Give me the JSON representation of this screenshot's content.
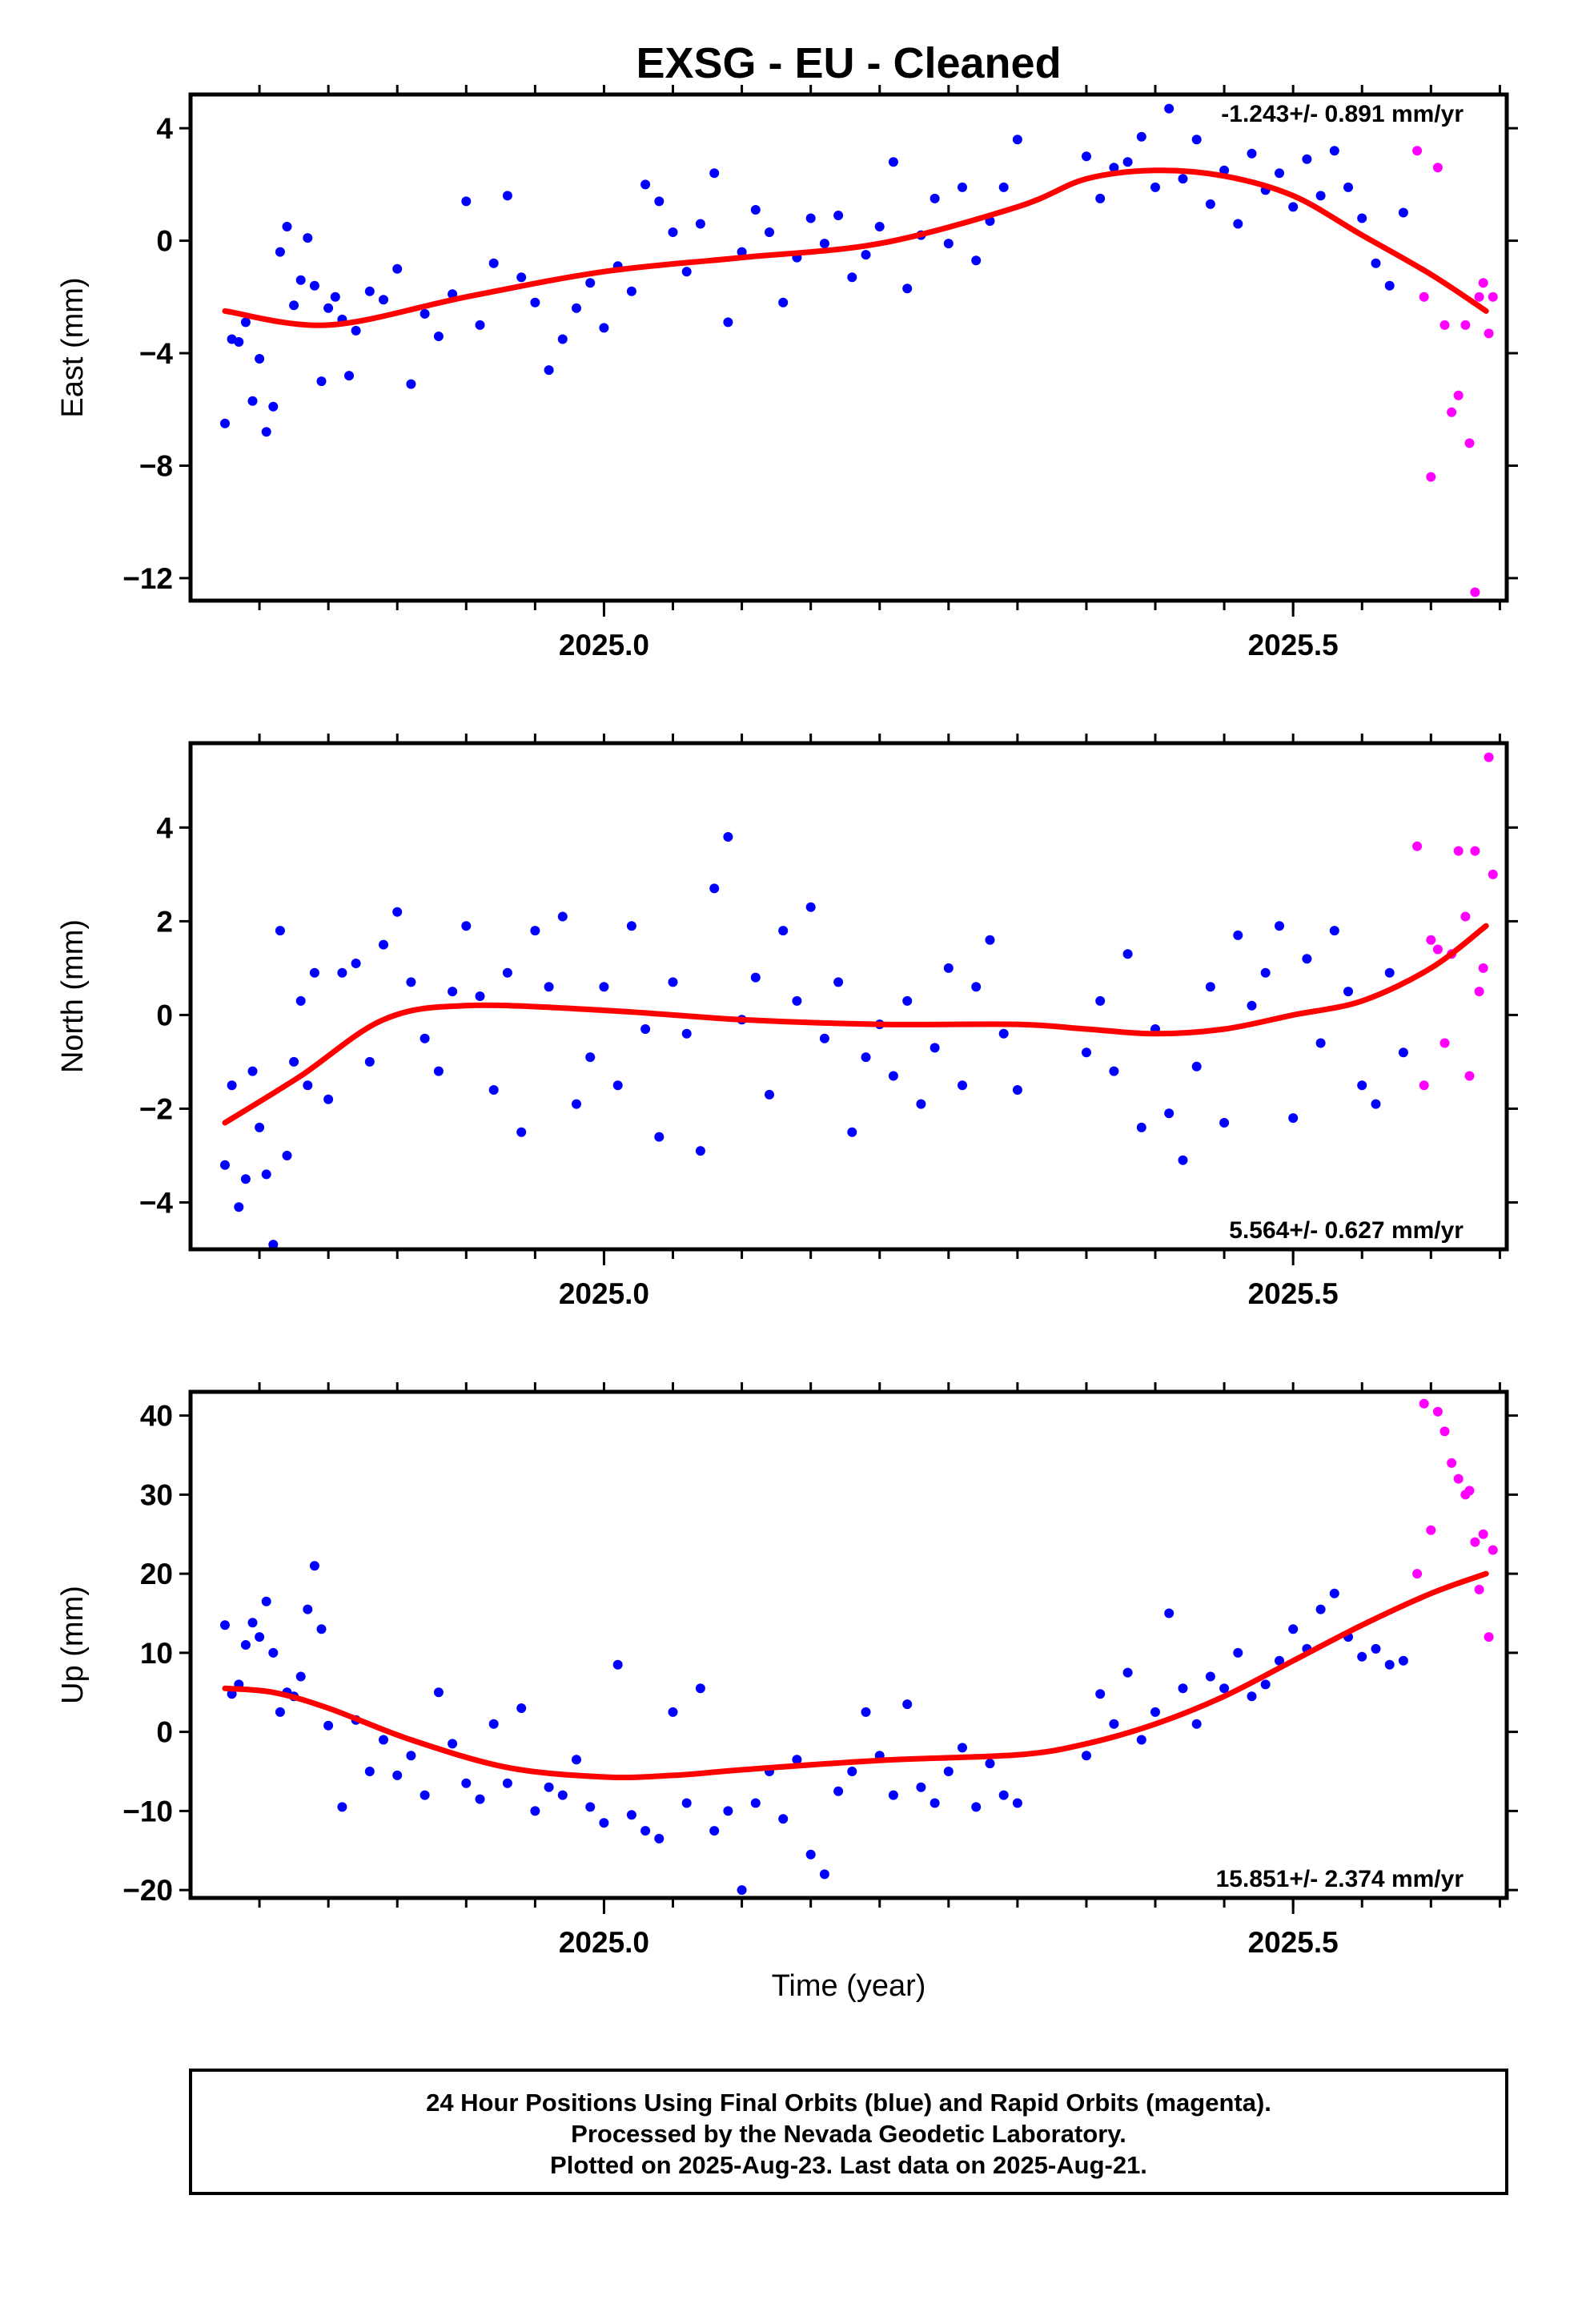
{
  "title": "EXSG  - EU - Cleaned",
  "xlabel": "Time (year)",
  "footer": {
    "line1": "24 Hour Positions Using Final Orbits (blue) and Rapid Orbits (magenta).",
    "line2": "Processed by the Nevada Geodetic Laboratory.",
    "line3": "Plotted on 2025-Aug-23. Last data on 2025-Aug-21."
  },
  "colors": {
    "final": "#0000ff",
    "rapid": "#ff00ff",
    "fit": "#ff0000",
    "frame": "#000000"
  },
  "chart_data": [
    {
      "type": "scatter",
      "component": "east",
      "ylabel": "East (mm)",
      "rate_label": "-1.243+/- 0.891 mm/yr",
      "xlim": [
        2024.7,
        2025.655
      ],
      "ylim": [
        -12.8,
        5.2
      ],
      "yticks": [
        -12,
        -8,
        -4,
        0,
        4
      ],
      "xticks": [
        2025.0,
        2025.5
      ],
      "fit": {
        "x": [
          2024.725,
          2024.8,
          2024.9,
          2025.0,
          2025.1,
          2025.2,
          2025.3,
          2025.35,
          2025.4,
          2025.45,
          2025.5,
          2025.55,
          2025.6,
          2025.64
        ],
        "y": [
          -2.5,
          -3.0,
          -2.0,
          -1.1,
          -0.6,
          -0.1,
          1.2,
          2.2,
          2.5,
          2.3,
          1.6,
          0.2,
          -1.2,
          -2.5
        ]
      },
      "series": [
        {
          "name": "Final Orbits",
          "color": "#0000ff",
          "x": [
            2024.725,
            2024.73,
            2024.735,
            2024.74,
            2024.745,
            2024.75,
            2024.755,
            2024.76,
            2024.765,
            2024.77,
            2024.775,
            2024.78,
            2024.785,
            2024.79,
            2024.795,
            2024.8,
            2024.805,
            2024.81,
            2024.815,
            2024.82,
            2024.83,
            2024.84,
            2024.85,
            2024.86,
            2024.87,
            2024.88,
            2024.89,
            2024.9,
            2024.91,
            2024.92,
            2024.93,
            2024.94,
            2024.95,
            2024.96,
            2024.97,
            2024.98,
            2024.99,
            2025.0,
            2025.01,
            2025.02,
            2025.03,
            2025.04,
            2025.05,
            2025.06,
            2025.07,
            2025.08,
            2025.09,
            2025.1,
            2025.11,
            2025.12,
            2025.13,
            2025.14,
            2025.15,
            2025.16,
            2025.17,
            2025.18,
            2025.19,
            2025.2,
            2025.21,
            2025.22,
            2025.23,
            2025.24,
            2025.25,
            2025.26,
            2025.27,
            2025.28,
            2025.29,
            2025.3,
            2025.35,
            2025.36,
            2025.37,
            2025.38,
            2025.39,
            2025.4,
            2025.41,
            2025.42,
            2025.43,
            2025.44,
            2025.45,
            2025.46,
            2025.47,
            2025.48,
            2025.49,
            2025.5,
            2025.51,
            2025.52,
            2025.53,
            2025.54,
            2025.55,
            2025.56,
            2025.57,
            2025.58
          ],
          "y": [
            -6.5,
            -3.5,
            -3.6,
            -2.9,
            -5.7,
            -4.2,
            -6.8,
            -5.9,
            -0.4,
            0.5,
            -2.3,
            -1.4,
            0.1,
            -1.6,
            -5.0,
            -2.4,
            -2.0,
            -2.8,
            -4.8,
            -3.2,
            -1.8,
            -2.1,
            -1.0,
            -5.1,
            -2.6,
            -3.4,
            -1.9,
            1.4,
            -3.0,
            -0.8,
            1.6,
            -1.3,
            -2.2,
            -4.6,
            -3.5,
            -2.4,
            -1.5,
            -3.1,
            -0.9,
            -1.8,
            2.0,
            1.4,
            0.3,
            -1.1,
            0.6,
            2.4,
            -2.9,
            -0.4,
            1.1,
            0.3,
            -2.2,
            -0.6,
            0.8,
            -0.1,
            0.9,
            -1.3,
            -0.5,
            0.5,
            2.8,
            -1.7,
            0.2,
            1.5,
            -0.1,
            1.9,
            -0.7,
            0.7,
            1.9,
            3.6,
            3.0,
            1.5,
            2.6,
            2.8,
            3.7,
            1.9,
            4.7,
            2.2,
            3.6,
            1.3,
            2.5,
            0.6,
            3.1,
            1.8,
            2.4,
            1.2,
            2.9,
            1.6,
            3.2,
            1.9,
            0.8,
            -0.8,
            -1.6,
            1.0
          ]
        },
        {
          "name": "Rapid Orbits",
          "color": "#ff00ff",
          "x": [
            2025.59,
            2025.595,
            2025.6,
            2025.605,
            2025.61,
            2025.615,
            2025.62,
            2025.625,
            2025.628,
            2025.632,
            2025.635,
            2025.638,
            2025.642,
            2025.645
          ],
          "y": [
            3.2,
            -2.0,
            -8.4,
            2.6,
            -3.0,
            -6.1,
            -5.5,
            -3.0,
            -7.2,
            -12.5,
            -2.0,
            -1.5,
            -3.3,
            -2.0
          ]
        }
      ]
    },
    {
      "type": "scatter",
      "component": "north",
      "ylabel": "North (mm)",
      "rate_label": "5.564+/- 0.627 mm/yr",
      "xlim": [
        2024.7,
        2025.655
      ],
      "ylim": [
        -5.0,
        5.8
      ],
      "yticks": [
        -4,
        -2,
        0,
        2,
        4
      ],
      "xticks": [
        2025.0,
        2025.5
      ],
      "fit": {
        "x": [
          2024.725,
          2024.78,
          2024.84,
          2024.9,
          2025.0,
          2025.1,
          2025.2,
          2025.3,
          2025.35,
          2025.4,
          2025.45,
          2025.5,
          2025.55,
          2025.6,
          2025.64
        ],
        "y": [
          -2.3,
          -1.3,
          -0.1,
          0.2,
          0.1,
          -0.1,
          -0.2,
          -0.2,
          -0.3,
          -0.4,
          -0.3,
          0.0,
          0.3,
          1.0,
          1.9
        ]
      },
      "series": [
        {
          "name": "Final Orbits",
          "color": "#0000ff",
          "x": [
            2024.725,
            2024.73,
            2024.735,
            2024.74,
            2024.745,
            2024.75,
            2024.755,
            2024.76,
            2024.765,
            2024.77,
            2024.775,
            2024.78,
            2024.785,
            2024.79,
            2024.8,
            2024.81,
            2024.82,
            2024.83,
            2024.84,
            2024.85,
            2024.86,
            2024.87,
            2024.88,
            2024.89,
            2024.9,
            2024.91,
            2024.92,
            2024.93,
            2024.94,
            2024.95,
            2024.96,
            2024.97,
            2024.98,
            2024.99,
            2025.0,
            2025.01,
            2025.02,
            2025.03,
            2025.04,
            2025.05,
            2025.06,
            2025.07,
            2025.08,
            2025.09,
            2025.1,
            2025.11,
            2025.12,
            2025.13,
            2025.14,
            2025.15,
            2025.16,
            2025.17,
            2025.18,
            2025.19,
            2025.2,
            2025.21,
            2025.22,
            2025.23,
            2025.24,
            2025.25,
            2025.26,
            2025.27,
            2025.28,
            2025.29,
            2025.3,
            2025.35,
            2025.36,
            2025.37,
            2025.38,
            2025.39,
            2025.4,
            2025.41,
            2025.42,
            2025.43,
            2025.44,
            2025.45,
            2025.46,
            2025.47,
            2025.48,
            2025.49,
            2025.5,
            2025.51,
            2025.52,
            2025.53,
            2025.54,
            2025.55,
            2025.56,
            2025.57,
            2025.58
          ],
          "y": [
            -3.2,
            -1.5,
            -4.1,
            -3.5,
            -1.2,
            -2.4,
            -3.4,
            -4.9,
            1.8,
            -3.0,
            -1.0,
            0.3,
            -1.5,
            0.9,
            -1.8,
            0.9,
            1.1,
            -1.0,
            1.5,
            2.2,
            0.7,
            -0.5,
            -1.2,
            0.5,
            1.9,
            0.4,
            -1.6,
            0.9,
            -2.5,
            1.8,
            0.6,
            2.1,
            -1.9,
            -0.9,
            0.6,
            -1.5,
            1.9,
            -0.3,
            -2.6,
            0.7,
            -0.4,
            -2.9,
            2.7,
            3.8,
            -0.1,
            0.8,
            -1.7,
            1.8,
            0.3,
            2.3,
            -0.5,
            0.7,
            -2.5,
            -0.9,
            -0.2,
            -1.3,
            0.3,
            -1.9,
            -0.7,
            1.0,
            -1.5,
            0.6,
            1.6,
            -0.4,
            -1.6,
            -0.8,
            0.3,
            -1.2,
            1.3,
            -2.4,
            -0.3,
            -2.1,
            -3.1,
            -1.1,
            0.6,
            -2.3,
            1.7,
            0.2,
            0.9,
            1.9,
            -2.2,
            1.2,
            -0.6,
            1.8,
            0.5,
            -1.5,
            -1.9,
            0.9,
            -0.8
          ]
        },
        {
          "name": "Rapid Orbits",
          "color": "#ff00ff",
          "x": [
            2025.59,
            2025.595,
            2025.6,
            2025.605,
            2025.61,
            2025.615,
            2025.62,
            2025.625,
            2025.628,
            2025.632,
            2025.635,
            2025.638,
            2025.642,
            2025.645
          ],
          "y": [
            3.6,
            -1.5,
            1.6,
            1.4,
            -0.6,
            1.3,
            3.5,
            2.1,
            -1.3,
            3.5,
            0.5,
            1.0,
            5.5,
            3.0
          ]
        }
      ]
    },
    {
      "type": "scatter",
      "component": "up",
      "ylabel": "Up (mm)",
      "rate_label": "15.851+/- 2.374 mm/yr",
      "xlim": [
        2024.7,
        2025.655
      ],
      "ylim": [
        -21,
        43
      ],
      "yticks": [
        -20,
        -10,
        0,
        10,
        20,
        30,
        40
      ],
      "xticks": [
        2025.0,
        2025.5
      ],
      "fit": {
        "x": [
          2024.725,
          2024.76,
          2024.8,
          2024.86,
          2024.93,
          2025.0,
          2025.05,
          2025.1,
          2025.2,
          2025.3,
          2025.35,
          2025.4,
          2025.45,
          2025.5,
          2025.55,
          2025.6,
          2025.64
        ],
        "y": [
          5.5,
          5.0,
          3.0,
          -1.0,
          -4.5,
          -5.7,
          -5.5,
          -4.8,
          -3.6,
          -2.9,
          -1.5,
          1.0,
          4.5,
          9.0,
          13.5,
          17.5,
          20.0
        ]
      },
      "series": [
        {
          "name": "Final Orbits",
          "color": "#0000ff",
          "x": [
            2024.725,
            2024.73,
            2024.735,
            2024.74,
            2024.745,
            2024.75,
            2024.755,
            2024.76,
            2024.765,
            2024.77,
            2024.775,
            2024.78,
            2024.785,
            2024.79,
            2024.795,
            2024.8,
            2024.81,
            2024.82,
            2024.83,
            2024.84,
            2024.85,
            2024.86,
            2024.87,
            2024.88,
            2024.89,
            2024.9,
            2024.91,
            2024.92,
            2024.93,
            2024.94,
            2024.95,
            2024.96,
            2024.97,
            2024.98,
            2024.99,
            2025.0,
            2025.01,
            2025.02,
            2025.03,
            2025.04,
            2025.05,
            2025.06,
            2025.07,
            2025.08,
            2025.09,
            2025.1,
            2025.11,
            2025.12,
            2025.13,
            2025.14,
            2025.15,
            2025.16,
            2025.17,
            2025.18,
            2025.19,
            2025.2,
            2025.21,
            2025.22,
            2025.23,
            2025.24,
            2025.25,
            2025.26,
            2025.27,
            2025.28,
            2025.29,
            2025.3,
            2025.35,
            2025.36,
            2025.37,
            2025.38,
            2025.39,
            2025.4,
            2025.41,
            2025.42,
            2025.43,
            2025.44,
            2025.45,
            2025.46,
            2025.47,
            2025.48,
            2025.49,
            2025.5,
            2025.51,
            2025.52,
            2025.53,
            2025.54,
            2025.55,
            2025.56,
            2025.57,
            2025.58
          ],
          "y": [
            13.5,
            4.8,
            6.0,
            11.0,
            13.8,
            12.0,
            16.5,
            10.0,
            2.5,
            5.0,
            4.5,
            7.0,
            15.5,
            21.0,
            13.0,
            0.8,
            -9.5,
            1.5,
            -5.0,
            -1.0,
            -5.5,
            -3.0,
            -8.0,
            5.0,
            -1.5,
            -6.5,
            -8.5,
            1.0,
            -6.5,
            3.0,
            -10.0,
            -7.0,
            -8.0,
            -3.5,
            -9.5,
            -11.5,
            8.5,
            -10.5,
            -12.5,
            -13.5,
            2.5,
            -9.0,
            5.5,
            -12.5,
            -10.0,
            -20.0,
            -9.0,
            -5.0,
            -11.0,
            -3.5,
            -15.5,
            -18.0,
            -7.5,
            -5.0,
            2.5,
            -3.0,
            -8.0,
            3.5,
            -7.0,
            -9.0,
            -5.0,
            -2.0,
            -9.5,
            -4.0,
            -8.0,
            -9.0,
            -3.0,
            4.8,
            1.0,
            7.5,
            -1.0,
            2.5,
            15.0,
            5.5,
            1.0,
            7.0,
            5.5,
            10.0,
            4.5,
            6.0,
            9.0,
            13.0,
            10.5,
            15.5,
            17.5,
            12.0,
            9.5,
            10.5,
            8.5,
            9.0
          ]
        },
        {
          "name": "Rapid Orbits",
          "color": "#ff00ff",
          "x": [
            2025.59,
            2025.595,
            2025.6,
            2025.605,
            2025.61,
            2025.615,
            2025.62,
            2025.625,
            2025.628,
            2025.632,
            2025.635,
            2025.638,
            2025.642,
            2025.645
          ],
          "y": [
            20.0,
            41.5,
            25.5,
            40.5,
            38.0,
            34.0,
            32.0,
            30.0,
            30.5,
            24.0,
            18.0,
            25.0,
            12.0,
            23.0
          ]
        }
      ]
    }
  ]
}
